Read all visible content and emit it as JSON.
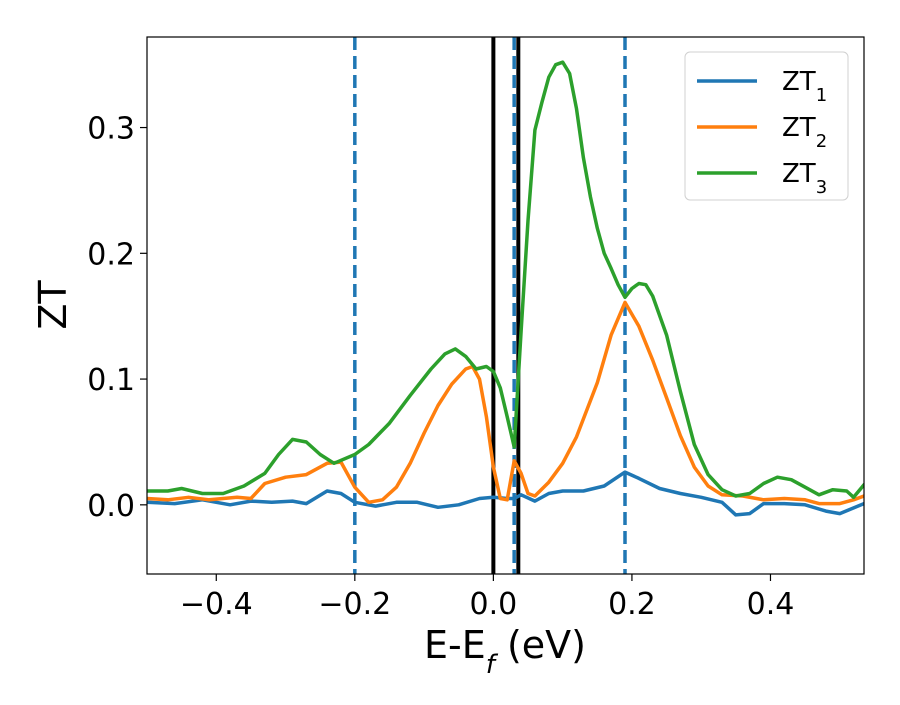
{
  "chart_data": {
    "type": "line",
    "title": "",
    "xlabel": "E-E",
    "xlabel_sub": "f",
    "xlabel_unit": " (eV)",
    "ylabel": "ZT",
    "xlim": [
      -0.5,
      0.535
    ],
    "ylim": [
      -0.055,
      0.372
    ],
    "grid": false,
    "legend_position": "top-right",
    "x_ticks": [
      -0.4,
      -0.2,
      0.0,
      0.2,
      0.4
    ],
    "x_tick_labels": [
      "−0.4",
      "−0.2",
      "0.0",
      "0.2",
      "0.4"
    ],
    "y_ticks": [
      0.0,
      0.1,
      0.2,
      0.3
    ],
    "y_tick_labels": [
      "0.0",
      "0.1",
      "0.2",
      "0.3"
    ],
    "vertical_lines": [
      {
        "x": -0.2,
        "style": "dashed",
        "color": "#1f77b4"
      },
      {
        "x": 0.03,
        "style": "dashed",
        "color": "#1f77b4"
      },
      {
        "x": 0.19,
        "style": "dashed",
        "color": "#1f77b4"
      },
      {
        "x": 0.0,
        "style": "solid",
        "color": "#000000"
      },
      {
        "x": 0.036,
        "style": "solid",
        "color": "#000000"
      }
    ],
    "series": [
      {
        "name": "ZT",
        "name_sub": "1",
        "color": "#1f77b4",
        "points": [
          [
            -0.5,
            0.002
          ],
          [
            -0.46,
            0.001
          ],
          [
            -0.42,
            0.004
          ],
          [
            -0.38,
            0.0
          ],
          [
            -0.35,
            0.003
          ],
          [
            -0.32,
            0.002
          ],
          [
            -0.29,
            0.003
          ],
          [
            -0.27,
            0.001
          ],
          [
            -0.24,
            0.011
          ],
          [
            -0.22,
            0.009
          ],
          [
            -0.2,
            0.002
          ],
          [
            -0.17,
            -0.001
          ],
          [
            -0.14,
            0.002
          ],
          [
            -0.11,
            0.002
          ],
          [
            -0.08,
            -0.002
          ],
          [
            -0.05,
            0.0
          ],
          [
            -0.02,
            0.005
          ],
          [
            0.0,
            0.006
          ],
          [
            0.02,
            0.005
          ],
          [
            0.03,
            0.005
          ],
          [
            0.04,
            0.008
          ],
          [
            0.06,
            0.003
          ],
          [
            0.08,
            0.009
          ],
          [
            0.1,
            0.011
          ],
          [
            0.13,
            0.011
          ],
          [
            0.16,
            0.015
          ],
          [
            0.19,
            0.026
          ],
          [
            0.21,
            0.021
          ],
          [
            0.24,
            0.013
          ],
          [
            0.27,
            0.009
          ],
          [
            0.3,
            0.006
          ],
          [
            0.33,
            0.002
          ],
          [
            0.35,
            -0.008
          ],
          [
            0.37,
            -0.007
          ],
          [
            0.39,
            0.001
          ],
          [
            0.42,
            0.001
          ],
          [
            0.45,
            0.0
          ],
          [
            0.48,
            -0.005
          ],
          [
            0.5,
            -0.007
          ],
          [
            0.535,
            0.001
          ]
        ]
      },
      {
        "name": "ZT",
        "name_sub": "2",
        "color": "#ff7f0e",
        "points": [
          [
            -0.5,
            0.005
          ],
          [
            -0.47,
            0.004
          ],
          [
            -0.44,
            0.006
          ],
          [
            -0.41,
            0.004
          ],
          [
            -0.37,
            0.006
          ],
          [
            -0.35,
            0.005
          ],
          [
            -0.33,
            0.017
          ],
          [
            -0.3,
            0.022
          ],
          [
            -0.27,
            0.024
          ],
          [
            -0.24,
            0.033
          ],
          [
            -0.22,
            0.034
          ],
          [
            -0.2,
            0.014
          ],
          [
            -0.18,
            0.002
          ],
          [
            -0.16,
            0.004
          ],
          [
            -0.14,
            0.014
          ],
          [
            -0.12,
            0.033
          ],
          [
            -0.1,
            0.057
          ],
          [
            -0.08,
            0.079
          ],
          [
            -0.06,
            0.096
          ],
          [
            -0.04,
            0.108
          ],
          [
            -0.03,
            0.11
          ],
          [
            -0.02,
            0.1
          ],
          [
            -0.01,
            0.07
          ],
          [
            0.0,
            0.03
          ],
          [
            0.01,
            0.005
          ],
          [
            0.02,
            0.004
          ],
          [
            0.03,
            0.035
          ],
          [
            0.04,
            0.025
          ],
          [
            0.05,
            0.009
          ],
          [
            0.06,
            0.007
          ],
          [
            0.08,
            0.018
          ],
          [
            0.1,
            0.033
          ],
          [
            0.12,
            0.054
          ],
          [
            0.15,
            0.097
          ],
          [
            0.17,
            0.135
          ],
          [
            0.19,
            0.161
          ],
          [
            0.21,
            0.142
          ],
          [
            0.23,
            0.115
          ],
          [
            0.25,
            0.085
          ],
          [
            0.27,
            0.055
          ],
          [
            0.29,
            0.03
          ],
          [
            0.31,
            0.015
          ],
          [
            0.33,
            0.008
          ],
          [
            0.36,
            0.007
          ],
          [
            0.39,
            0.004
          ],
          [
            0.42,
            0.005
          ],
          [
            0.45,
            0.004
          ],
          [
            0.47,
            0.001
          ],
          [
            0.5,
            0.001
          ],
          [
            0.52,
            0.004
          ],
          [
            0.535,
            0.007
          ]
        ]
      },
      {
        "name": "ZT",
        "name_sub": "3",
        "color": "#2ca02c",
        "points": [
          [
            -0.5,
            0.011
          ],
          [
            -0.47,
            0.011
          ],
          [
            -0.45,
            0.013
          ],
          [
            -0.42,
            0.009
          ],
          [
            -0.39,
            0.009
          ],
          [
            -0.36,
            0.015
          ],
          [
            -0.33,
            0.025
          ],
          [
            -0.31,
            0.04
          ],
          [
            -0.29,
            0.052
          ],
          [
            -0.27,
            0.05
          ],
          [
            -0.25,
            0.04
          ],
          [
            -0.23,
            0.033
          ],
          [
            -0.2,
            0.04
          ],
          [
            -0.18,
            0.048
          ],
          [
            -0.15,
            0.065
          ],
          [
            -0.12,
            0.087
          ],
          [
            -0.09,
            0.108
          ],
          [
            -0.07,
            0.12
          ],
          [
            -0.055,
            0.124
          ],
          [
            -0.04,
            0.118
          ],
          [
            -0.025,
            0.108
          ],
          [
            -0.01,
            0.11
          ],
          [
            0.0,
            0.106
          ],
          [
            0.01,
            0.093
          ],
          [
            0.02,
            0.07
          ],
          [
            0.03,
            0.046
          ],
          [
            0.04,
            0.138
          ],
          [
            0.05,
            0.226
          ],
          [
            0.06,
            0.298
          ],
          [
            0.07,
            0.32
          ],
          [
            0.08,
            0.34
          ],
          [
            0.09,
            0.35
          ],
          [
            0.1,
            0.352
          ],
          [
            0.11,
            0.343
          ],
          [
            0.12,
            0.315
          ],
          [
            0.13,
            0.276
          ],
          [
            0.14,
            0.245
          ],
          [
            0.15,
            0.22
          ],
          [
            0.16,
            0.2
          ],
          [
            0.17,
            0.188
          ],
          [
            0.18,
            0.175
          ],
          [
            0.19,
            0.165
          ],
          [
            0.2,
            0.172
          ],
          [
            0.21,
            0.176
          ],
          [
            0.22,
            0.175
          ],
          [
            0.23,
            0.166
          ],
          [
            0.25,
            0.135
          ],
          [
            0.27,
            0.09
          ],
          [
            0.29,
            0.048
          ],
          [
            0.31,
            0.024
          ],
          [
            0.33,
            0.012
          ],
          [
            0.35,
            0.007
          ],
          [
            0.37,
            0.009
          ],
          [
            0.39,
            0.017
          ],
          [
            0.41,
            0.022
          ],
          [
            0.43,
            0.02
          ],
          [
            0.45,
            0.014
          ],
          [
            0.47,
            0.008
          ],
          [
            0.49,
            0.012
          ],
          [
            0.51,
            0.011
          ],
          [
            0.52,
            0.006
          ],
          [
            0.535,
            0.016
          ]
        ]
      }
    ]
  }
}
